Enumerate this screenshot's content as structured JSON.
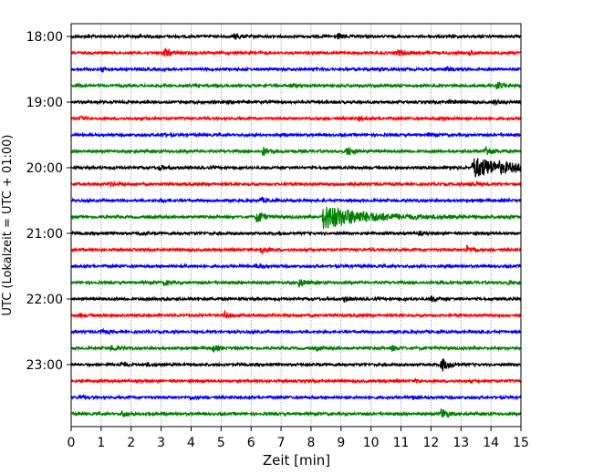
{
  "chart_data": {
    "type": "line",
    "title": "",
    "xlabel": "Zeit  [min]",
    "ylabel": "UTC (Lokalzeit = UTC + 01:00)",
    "xlim": [
      0,
      15
    ],
    "x_ticks": [
      "0",
      "1",
      "2",
      "3",
      "4",
      "5",
      "6",
      "7",
      "8",
      "9",
      "10",
      "11",
      "12",
      "13",
      "14",
      "15"
    ],
    "y_ticks": [
      {
        "label": "18:00",
        "trace": 0
      },
      {
        "label": "19:00",
        "trace": 4
      },
      {
        "label": "20:00",
        "trace": 8
      },
      {
        "label": "21:00",
        "trace": 12
      },
      {
        "label": "22:00",
        "trace": 16
      },
      {
        "label": "23:00",
        "trace": 20
      }
    ],
    "trace_interval_min": 15,
    "trace_colors": [
      "#000000",
      "#ff0000",
      "#0000ff",
      "#008000"
    ],
    "vertical_grid": true,
    "traces": [
      {
        "start": "18:00",
        "events": [
          [
            5.45,
            0.5
          ],
          [
            8.9,
            0.5
          ],
          [
            2.2,
            0.25
          ]
        ]
      },
      {
        "start": "18:15",
        "events": [
          [
            3.1,
            0.9
          ],
          [
            10.9,
            0.5
          ],
          [
            13.3,
            0.4
          ]
        ]
      },
      {
        "start": "18:30",
        "events": [
          [
            1.0,
            0.4
          ],
          [
            12.5,
            0.35
          ],
          [
            10.3,
            0.25
          ]
        ]
      },
      {
        "start": "18:45",
        "events": [
          [
            14.2,
            0.8
          ],
          [
            7.3,
            0.25
          ],
          [
            0.2,
            0.3
          ]
        ]
      },
      {
        "start": "19:00",
        "events": [
          [
            5.1,
            0.3
          ],
          [
            12.6,
            0.3
          ],
          [
            14.1,
            0.3
          ]
        ]
      },
      {
        "start": "19:15",
        "events": [
          [
            0.3,
            0.35
          ],
          [
            12.3,
            0.35
          ],
          [
            9.6,
            0.25
          ]
        ]
      },
      {
        "start": "19:30",
        "events": [
          [
            3.0,
            0.25
          ],
          [
            11.9,
            0.25
          ]
        ]
      },
      {
        "start": "19:45",
        "events": [
          [
            6.4,
            0.8
          ],
          [
            9.2,
            0.9
          ],
          [
            13.8,
            1.1
          ]
        ]
      },
      {
        "start": "20:00",
        "events": [
          [
            13.4,
            1.8
          ],
          [
            2.95,
            0.4
          ],
          [
            12.6,
            0.3
          ]
        ]
      },
      {
        "start": "20:15",
        "events": [
          [
            13.3,
            0.5
          ],
          [
            1.3,
            0.25
          ],
          [
            9.2,
            0.25
          ]
        ]
      },
      {
        "start": "20:30",
        "events": [
          [
            6.3,
            0.5
          ],
          [
            3.0,
            0.3
          ]
        ]
      },
      {
        "start": "20:45",
        "events": [
          [
            8.4,
            2.2
          ],
          [
            6.2,
            1.3
          ],
          [
            14.5,
            0.35
          ]
        ]
      },
      {
        "start": "21:00",
        "events": [
          [
            2.3,
            0.25
          ],
          [
            11.6,
            0.25
          ]
        ]
      },
      {
        "start": "21:15",
        "events": [
          [
            6.3,
            0.6
          ],
          [
            13.2,
            0.6
          ]
        ]
      },
      {
        "start": "21:30",
        "events": [
          [
            6.2,
            0.4
          ],
          [
            3.7,
            0.25
          ]
        ]
      },
      {
        "start": "21:45",
        "events": [
          [
            7.6,
            0.8
          ],
          [
            3.1,
            0.45
          ],
          [
            14.6,
            0.25
          ]
        ]
      },
      {
        "start": "22:00",
        "events": [
          [
            12.0,
            0.5
          ],
          [
            9.1,
            0.4
          ],
          [
            3.0,
            0.3
          ]
        ]
      },
      {
        "start": "22:15",
        "events": [
          [
            5.1,
            0.6
          ],
          [
            0.3,
            0.25
          ]
        ]
      },
      {
        "start": "22:30",
        "events": [
          [
            1.0,
            0.35
          ],
          [
            13.6,
            0.25
          ]
        ]
      },
      {
        "start": "22:45",
        "events": [
          [
            1.35,
            0.5
          ],
          [
            4.7,
            0.6
          ],
          [
            10.7,
            0.45
          ],
          [
            8.2,
            0.3
          ]
        ]
      },
      {
        "start": "23:00",
        "events": [
          [
            12.35,
            1.4
          ],
          [
            1.6,
            0.4
          ],
          [
            2.5,
            0.25
          ]
        ]
      },
      {
        "start": "23:15",
        "events": [
          [
            11.5,
            0.25
          ]
        ]
      },
      {
        "start": "23:30",
        "events": [
          [
            4.0,
            0.3
          ],
          [
            11.4,
            0.3
          ],
          [
            0.3,
            0.25
          ]
        ]
      },
      {
        "start": "23:45",
        "events": [
          [
            1.7,
            0.6
          ],
          [
            12.35,
            1.1
          ],
          [
            2.5,
            0.25
          ]
        ]
      }
    ]
  }
}
